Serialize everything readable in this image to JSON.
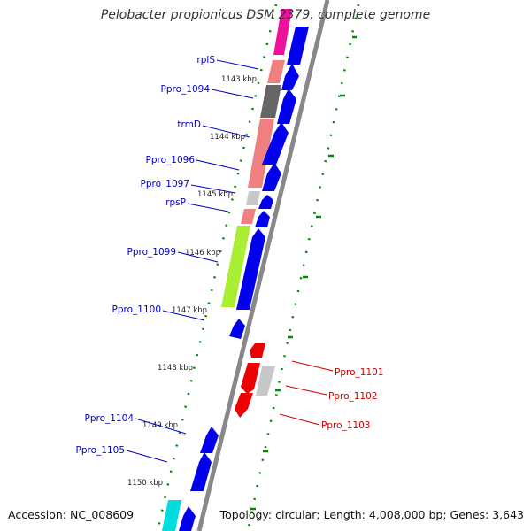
{
  "title": "Pelobacter propionicus DSM 2379, complete genome",
  "accession_text": "Accession: NC_008609",
  "summary_text": "Topology: circular; Length: 4,008,000 bp; Genes: 3,643",
  "tick_labels": [
    "1143 kbp",
    "1144 kbp",
    "1145 kbp",
    "1146 kbp",
    "1147 kbp",
    "1148 kbp",
    "1149 kbp",
    "1150 kbp"
  ],
  "genes": [
    {
      "name": "rplS",
      "strand": "forward"
    },
    {
      "name": "Ppro_1094",
      "strand": "forward"
    },
    {
      "name": "trmD",
      "strand": "forward"
    },
    {
      "name": "Ppro_1096",
      "strand": "forward"
    },
    {
      "name": "Ppro_1097",
      "strand": "forward"
    },
    {
      "name": "rpsP",
      "strand": "forward"
    },
    {
      "name": "Ppro_1099",
      "strand": "forward"
    },
    {
      "name": "Ppro_1100",
      "strand": "forward"
    },
    {
      "name": "Ppro_1101",
      "strand": "reverse"
    },
    {
      "name": "Ppro_1102",
      "strand": "reverse"
    },
    {
      "name": "Ppro_1103",
      "strand": "reverse"
    },
    {
      "name": "Ppro_1104",
      "strand": "forward"
    },
    {
      "name": "Ppro_1105",
      "strand": "forward"
    }
  ],
  "colors": {
    "forward_label": "#0000cc",
    "reverse_label": "#cc0000",
    "forward_gene": "#0000ee",
    "reverse_gene": "#ee0000",
    "backbone": "#888888",
    "dots": "#008800"
  }
}
